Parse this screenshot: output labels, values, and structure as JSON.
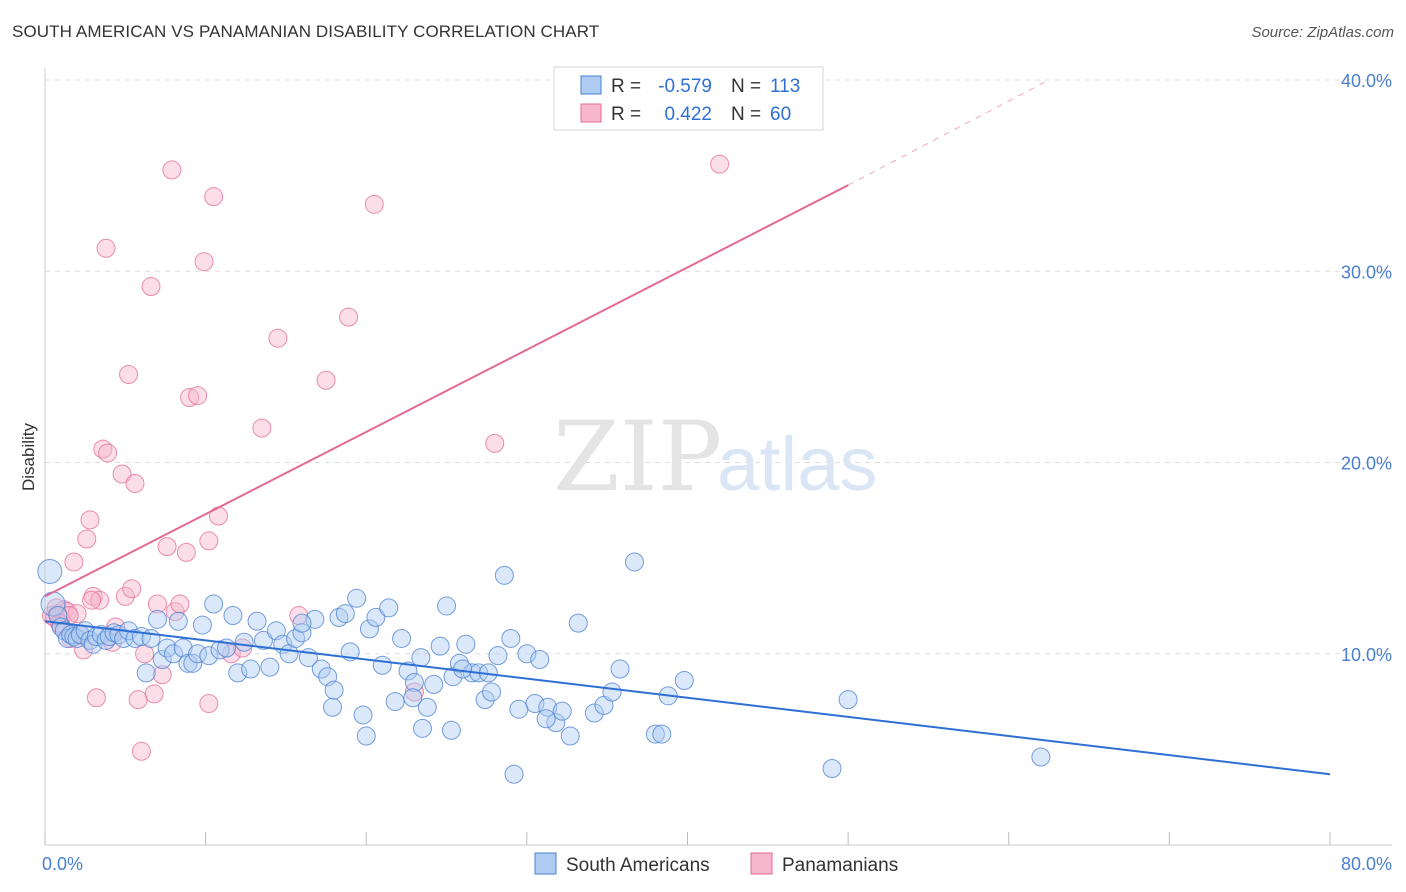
{
  "header": {
    "title": "SOUTH AMERICAN VS PANAMANIAN DISABILITY CORRELATION CHART",
    "source": "Source: ZipAtlas.com"
  },
  "watermark": {
    "zip": "ZIP",
    "atlas": "atlas"
  },
  "colors": {
    "blue": "#4a7fd0",
    "blue_fill": "#aecbf2",
    "blue_line": "#2e6fd4",
    "pink": "#e46a96",
    "pink_fill": "#f6b6cc",
    "grid": "#dddddd"
  },
  "legend_top": [
    {
      "r_label": "R =",
      "r_value": "-0.579",
      "n_label": "N =",
      "n_value": "113",
      "series": "blue"
    },
    {
      "r_label": "R =",
      "r_value": "0.422",
      "n_label": "N =",
      "n_value": "60",
      "series": "pink"
    }
  ],
  "chart_data": {
    "type": "scatter",
    "title": "SOUTH AMERICAN VS PANAMANIAN DISABILITY CORRELATION CHART",
    "xlabel": "",
    "ylabel": "Disability",
    "xlim": [
      0,
      80
    ],
    "ylim": [
      0,
      40
    ],
    "x_tick_labels": [
      "0.0%",
      "80.0%"
    ],
    "y_ticks": [
      10,
      20,
      30,
      40
    ],
    "y_tick_labels": [
      "10.0%",
      "20.0%",
      "30.0%",
      "40.0%"
    ],
    "grid": true,
    "legend_position": "top-center and bottom",
    "series": [
      {
        "name": "South Americans",
        "color": "#4a7fd0",
        "r": -0.579,
        "n": 113,
        "trend": {
          "x": [
            0,
            80
          ],
          "y": [
            11.7,
            3.7
          ]
        },
        "points": [
          [
            0.3,
            14.3
          ],
          [
            0.5,
            12.6
          ],
          [
            0.8,
            12.0
          ],
          [
            1.0,
            11.4
          ],
          [
            1.2,
            11.2
          ],
          [
            1.4,
            10.8
          ],
          [
            1.6,
            11.0
          ],
          [
            1.8,
            10.9
          ],
          [
            2.0,
            10.8
          ],
          [
            2.2,
            11.0
          ],
          [
            2.5,
            11.2
          ],
          [
            2.8,
            10.7
          ],
          [
            3.0,
            10.5
          ],
          [
            3.2,
            10.9
          ],
          [
            3.5,
            11.0
          ],
          [
            3.8,
            10.7
          ],
          [
            4.0,
            10.9
          ],
          [
            4.3,
            11.1
          ],
          [
            4.6,
            11.0
          ],
          [
            4.9,
            10.8
          ],
          [
            5.2,
            11.2
          ],
          [
            5.6,
            10.8
          ],
          [
            6.0,
            10.9
          ],
          [
            6.3,
            9.0
          ],
          [
            6.6,
            10.8
          ],
          [
            7.0,
            11.8
          ],
          [
            7.3,
            9.7
          ],
          [
            7.6,
            10.3
          ],
          [
            8.0,
            10.0
          ],
          [
            8.3,
            11.7
          ],
          [
            8.6,
            10.3
          ],
          [
            8.9,
            9.5
          ],
          [
            9.2,
            9.5
          ],
          [
            9.5,
            10.0
          ],
          [
            9.8,
            11.5
          ],
          [
            10.2,
            9.9
          ],
          [
            10.5,
            12.6
          ],
          [
            10.9,
            10.2
          ],
          [
            11.3,
            10.3
          ],
          [
            11.7,
            12.0
          ],
          [
            12.0,
            9.0
          ],
          [
            12.4,
            10.6
          ],
          [
            12.8,
            9.2
          ],
          [
            13.2,
            11.7
          ],
          [
            13.6,
            10.7
          ],
          [
            14.0,
            9.3
          ],
          [
            14.4,
            11.2
          ],
          [
            14.8,
            10.5
          ],
          [
            15.2,
            10.0
          ],
          [
            15.6,
            10.8
          ],
          [
            16.0,
            11.1
          ],
          [
            16.4,
            9.8
          ],
          [
            16.8,
            11.8
          ],
          [
            17.2,
            9.2
          ],
          [
            17.6,
            8.8
          ],
          [
            17.9,
            7.2
          ],
          [
            18.3,
            11.9
          ],
          [
            18.7,
            12.1
          ],
          [
            19.0,
            10.1
          ],
          [
            19.4,
            12.9
          ],
          [
            19.8,
            6.8
          ],
          [
            20.2,
            11.3
          ],
          [
            20.6,
            11.9
          ],
          [
            21.0,
            9.4
          ],
          [
            21.4,
            12.4
          ],
          [
            21.8,
            7.5
          ],
          [
            22.2,
            10.8
          ],
          [
            22.6,
            9.1
          ],
          [
            23.0,
            8.5
          ],
          [
            23.4,
            9.8
          ],
          [
            23.8,
            7.2
          ],
          [
            24.2,
            8.4
          ],
          [
            24.6,
            10.4
          ],
          [
            25.0,
            12.5
          ],
          [
            25.4,
            8.8
          ],
          [
            25.8,
            9.5
          ],
          [
            26.2,
            10.5
          ],
          [
            26.6,
            9.0
          ],
          [
            27.0,
            9.0
          ],
          [
            27.4,
            7.6
          ],
          [
            27.8,
            8.0
          ],
          [
            28.2,
            9.9
          ],
          [
            28.6,
            14.1
          ],
          [
            29.0,
            10.8
          ],
          [
            29.5,
            7.1
          ],
          [
            30.0,
            10.0
          ],
          [
            30.5,
            7.4
          ],
          [
            30.8,
            9.7
          ],
          [
            31.3,
            7.2
          ],
          [
            31.8,
            6.4
          ],
          [
            32.2,
            7.0
          ],
          [
            32.7,
            5.7
          ],
          [
            33.2,
            11.6
          ],
          [
            34.2,
            6.9
          ],
          [
            34.8,
            7.3
          ],
          [
            35.3,
            8.0
          ],
          [
            35.8,
            9.2
          ],
          [
            36.7,
            14.8
          ],
          [
            38.0,
            5.8
          ],
          [
            38.8,
            7.8
          ],
          [
            39.8,
            8.6
          ],
          [
            50.0,
            7.6
          ],
          [
            62.0,
            4.6
          ],
          [
            49.0,
            4.0
          ],
          [
            38.4,
            5.8
          ],
          [
            29.2,
            3.7
          ],
          [
            27.6,
            9.0
          ],
          [
            22.9,
            7.7
          ],
          [
            26.0,
            9.2
          ],
          [
            31.2,
            6.6
          ],
          [
            25.3,
            6.0
          ],
          [
            20.0,
            5.7
          ],
          [
            16.0,
            11.6
          ],
          [
            18.0,
            8.1
          ],
          [
            23.5,
            6.1
          ]
        ]
      },
      {
        "name": "Panamanians",
        "color": "#e46a96",
        "r": 0.422,
        "n": 60,
        "trend": {
          "x": [
            0,
            50
          ],
          "y": [
            13.0,
            34.5
          ]
        },
        "trend_dashed": {
          "x": [
            50,
            62.5
          ],
          "y": [
            34.5,
            40.0
          ]
        },
        "points": [
          [
            0.4,
            12.0
          ],
          [
            0.6,
            11.9
          ],
          [
            0.8,
            12.1
          ],
          [
            1.0,
            11.5
          ],
          [
            1.2,
            12.3
          ],
          [
            1.4,
            12.2
          ],
          [
            1.6,
            10.8
          ],
          [
            1.8,
            14.8
          ],
          [
            2.0,
            12.1
          ],
          [
            2.2,
            11.0
          ],
          [
            2.4,
            10.2
          ],
          [
            2.6,
            16.0
          ],
          [
            2.8,
            17.0
          ],
          [
            3.0,
            13.0
          ],
          [
            3.2,
            7.7
          ],
          [
            3.4,
            12.8
          ],
          [
            3.6,
            20.7
          ],
          [
            3.8,
            31.2
          ],
          [
            3.9,
            20.5
          ],
          [
            4.2,
            10.6
          ],
          [
            4.4,
            11.4
          ],
          [
            4.8,
            19.4
          ],
          [
            5.0,
            13.0
          ],
          [
            5.2,
            24.6
          ],
          [
            5.4,
            13.4
          ],
          [
            5.6,
            18.9
          ],
          [
            5.8,
            7.6
          ],
          [
            6.0,
            4.9
          ],
          [
            6.2,
            10.0
          ],
          [
            6.6,
            29.2
          ],
          [
            6.8,
            7.9
          ],
          [
            7.0,
            12.6
          ],
          [
            7.3,
            8.9
          ],
          [
            7.6,
            15.6
          ],
          [
            7.9,
            35.3
          ],
          [
            8.1,
            12.2
          ],
          [
            8.4,
            12.6
          ],
          [
            8.8,
            15.3
          ],
          [
            9.0,
            23.4
          ],
          [
            9.5,
            23.5
          ],
          [
            9.9,
            30.5
          ],
          [
            10.2,
            7.4
          ],
          [
            10.5,
            33.9
          ],
          [
            10.8,
            17.2
          ],
          [
            11.6,
            10.0
          ],
          [
            12.3,
            10.3
          ],
          [
            13.5,
            21.8
          ],
          [
            14.5,
            26.5
          ],
          [
            15.8,
            12.0
          ],
          [
            17.5,
            24.3
          ],
          [
            18.9,
            27.6
          ],
          [
            20.5,
            33.5
          ],
          [
            23.0,
            8.0
          ],
          [
            28.0,
            21.0
          ],
          [
            42.0,
            35.6
          ],
          [
            0.7,
            12.4
          ],
          [
            1.5,
            12.0
          ],
          [
            2.9,
            12.8
          ],
          [
            10.2,
            15.9
          ],
          [
            0.9,
            11.6
          ]
        ]
      }
    ]
  },
  "legend_bottom": [
    {
      "label": "South Americans",
      "series": "blue"
    },
    {
      "label": "Panamanians",
      "series": "pink"
    }
  ]
}
